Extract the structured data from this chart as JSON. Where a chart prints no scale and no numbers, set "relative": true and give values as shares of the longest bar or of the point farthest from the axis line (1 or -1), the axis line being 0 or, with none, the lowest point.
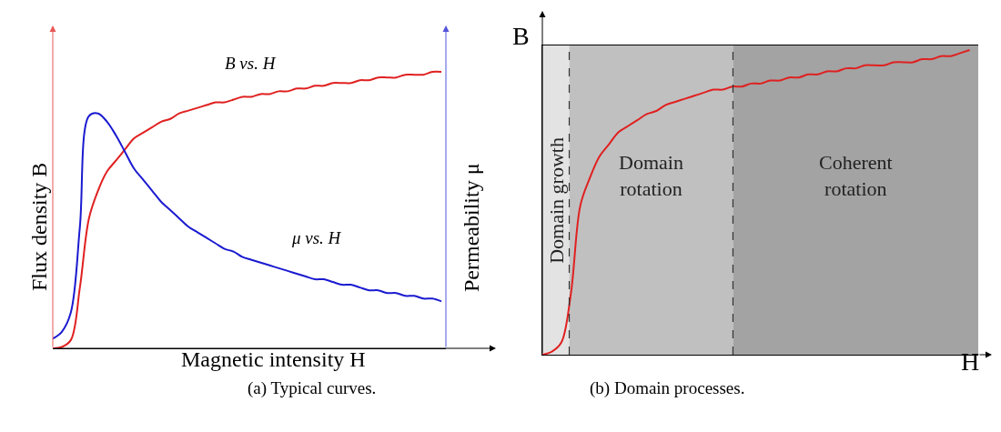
{
  "chart_data": [
    {
      "type": "line",
      "title": "(a) Typical curves.",
      "xlabel": "Magnetic intensity H",
      "ylabel": "Flux density B",
      "y2label": "Permeability μ",
      "relative": true,
      "grid": false,
      "legend": false,
      "marker": "none",
      "line_style": "solid",
      "categories": [
        null,
        null,
        null,
        null,
        null,
        null,
        null,
        null,
        null,
        null,
        null,
        null,
        null,
        null,
        null,
        null,
        null,
        null,
        null,
        null,
        null,
        null,
        null,
        null,
        null,
        null,
        null,
        null,
        null,
        null,
        null,
        null,
        null,
        null,
        null,
        null,
        null,
        null,
        null,
        null,
        null,
        null,
        null,
        null
      ],
      "series": [
        {
          "name": "B vs. H",
          "color": "#e02020",
          "values": [
            0,
            0.005,
            0.03,
            0.22,
            0.47,
            0.57,
            0.64,
            0.68,
            0.72,
            0.76,
            0.78,
            0.8,
            0.82,
            0.83,
            0.85,
            0.86,
            0.87,
            0.88,
            0.89,
            0.89,
            0.9,
            0.91,
            0.91,
            0.92,
            0.92,
            0.93,
            0.93,
            0.94,
            0.94,
            0.95,
            0.95,
            0.96,
            0.96,
            0.96,
            0.97,
            0.97,
            0.98,
            0.98,
            0.98,
            0.99,
            0.99,
            0.99,
            1.0,
            1.0
          ]
        },
        {
          "name": "μ vs. H",
          "color": "#1a1ad0",
          "values": [
            0.035,
            0.06,
            0.13,
            0.44,
            0.84,
            0.85,
            0.82,
            0.77,
            0.71,
            0.65,
            0.61,
            0.57,
            0.53,
            0.5,
            0.47,
            0.44,
            0.42,
            0.4,
            0.38,
            0.36,
            0.35,
            0.33,
            0.32,
            0.31,
            0.3,
            0.29,
            0.28,
            0.27,
            0.26,
            0.25,
            0.25,
            0.24,
            0.23,
            0.23,
            0.22,
            0.21,
            0.21,
            0.2,
            0.2,
            0.19,
            0.19,
            0.18,
            0.18,
            0.17
          ]
        }
      ]
    },
    {
      "type": "line",
      "title": "(b) Domain processes.",
      "xlabel": "H",
      "ylabel": "B",
      "relative": true,
      "grid": false,
      "legend": false,
      "marker": "none",
      "line_style": "solid",
      "categories": [
        null,
        null,
        null,
        null,
        null,
        null,
        null,
        null,
        null,
        null,
        null,
        null,
        null,
        null,
        null,
        null,
        null,
        null,
        null,
        null,
        null,
        null,
        null,
        null,
        null,
        null,
        null,
        null,
        null,
        null,
        null,
        null,
        null,
        null,
        null,
        null,
        null,
        null,
        null,
        null,
        null,
        null,
        null,
        null,
        null,
        null
      ],
      "series": [
        {
          "color": "#e02020",
          "values": [
            0,
            0.01,
            0.04,
            0.2,
            0.49,
            0.58,
            0.65,
            0.69,
            0.73,
            0.75,
            0.77,
            0.79,
            0.8,
            0.82,
            0.83,
            0.84,
            0.85,
            0.86,
            0.87,
            0.87,
            0.88,
            0.88,
            0.89,
            0.89,
            0.9,
            0.9,
            0.91,
            0.91,
            0.92,
            0.92,
            0.93,
            0.93,
            0.94,
            0.94,
            0.95,
            0.95,
            0.95,
            0.96,
            0.96,
            0.96,
            0.97,
            0.97,
            0.98,
            0.98,
            0.99,
            1.0
          ]
        }
      ],
      "annotations": [
        "Domain growth",
        "Domain rotation",
        "Coherent rotation"
      ]
    }
  ]
}
